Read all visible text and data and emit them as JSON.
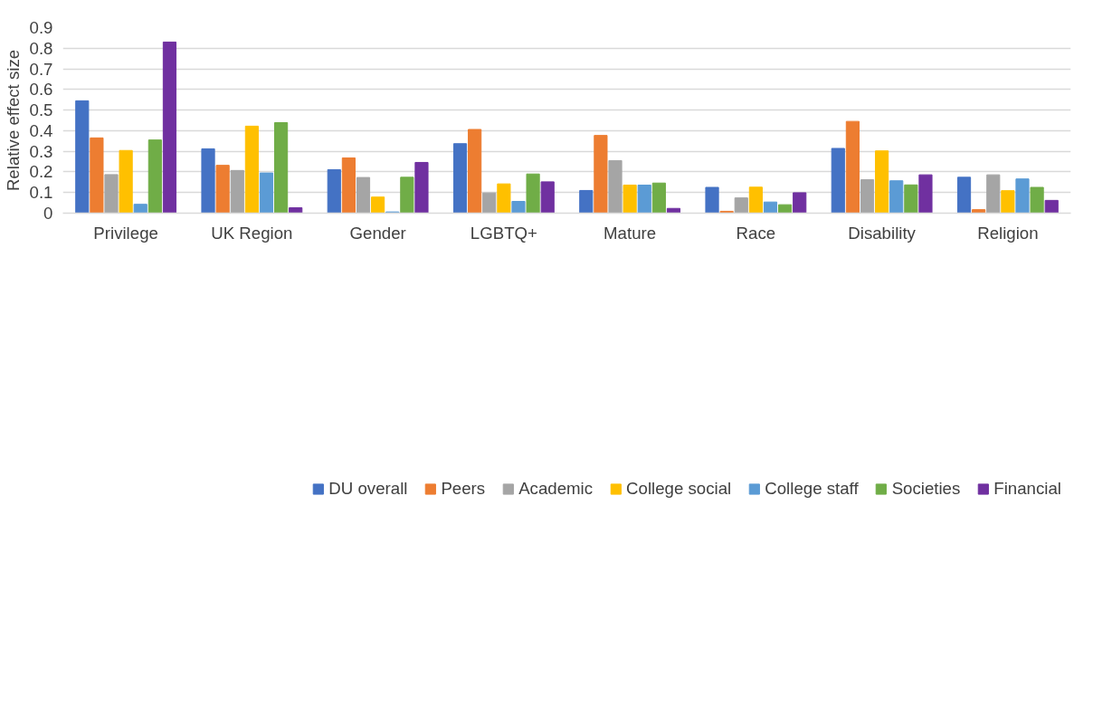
{
  "chart_data": {
    "type": "bar",
    "ylabel": "Relative effect size",
    "categories": [
      "Privilege",
      "UK Region",
      "Gender",
      "LGBTQ+",
      "Mature",
      "Race",
      "Disability",
      "Religion"
    ],
    "series": [
      {
        "name": "DU overall",
        "color": "#4472c4",
        "values": [
          0.545,
          0.312,
          0.211,
          0.337,
          0.11,
          0.125,
          0.314,
          0.174
        ]
      },
      {
        "name": "Peers",
        "color": "#ed7d31",
        "values": [
          0.365,
          0.232,
          0.268,
          0.406,
          0.377,
          0.009,
          0.445,
          0.017
        ]
      },
      {
        "name": "Academic",
        "color": "#a5a5a5",
        "values": [
          0.187,
          0.207,
          0.173,
          0.098,
          0.255,
          0.074,
          0.162,
          0.186
        ]
      },
      {
        "name": "College social",
        "color": "#ffc000",
        "values": [
          0.304,
          0.422,
          0.078,
          0.142,
          0.136,
          0.126,
          0.302,
          0.109
        ]
      },
      {
        "name": "College staff",
        "color": "#5b9bd5",
        "values": [
          0.043,
          0.195,
          0.006,
          0.057,
          0.136,
          0.054,
          0.157,
          0.166
        ]
      },
      {
        "name": "Societies",
        "color": "#70ad47",
        "values": [
          0.355,
          0.439,
          0.174,
          0.19,
          0.146,
          0.041,
          0.137,
          0.125
        ]
      },
      {
        "name": "Financial",
        "color": "#7030a0",
        "values": [
          0.83,
          0.026,
          0.246,
          0.152,
          0.023,
          0.099,
          0.186,
          0.062
        ]
      }
    ],
    "ylim": [
      0,
      0.9
    ],
    "yticks": [
      0,
      0.1,
      0.2,
      0.3,
      0.4,
      0.5,
      0.6,
      0.7,
      0.8,
      0.9
    ],
    "grid": "y",
    "legend": "bottom"
  }
}
